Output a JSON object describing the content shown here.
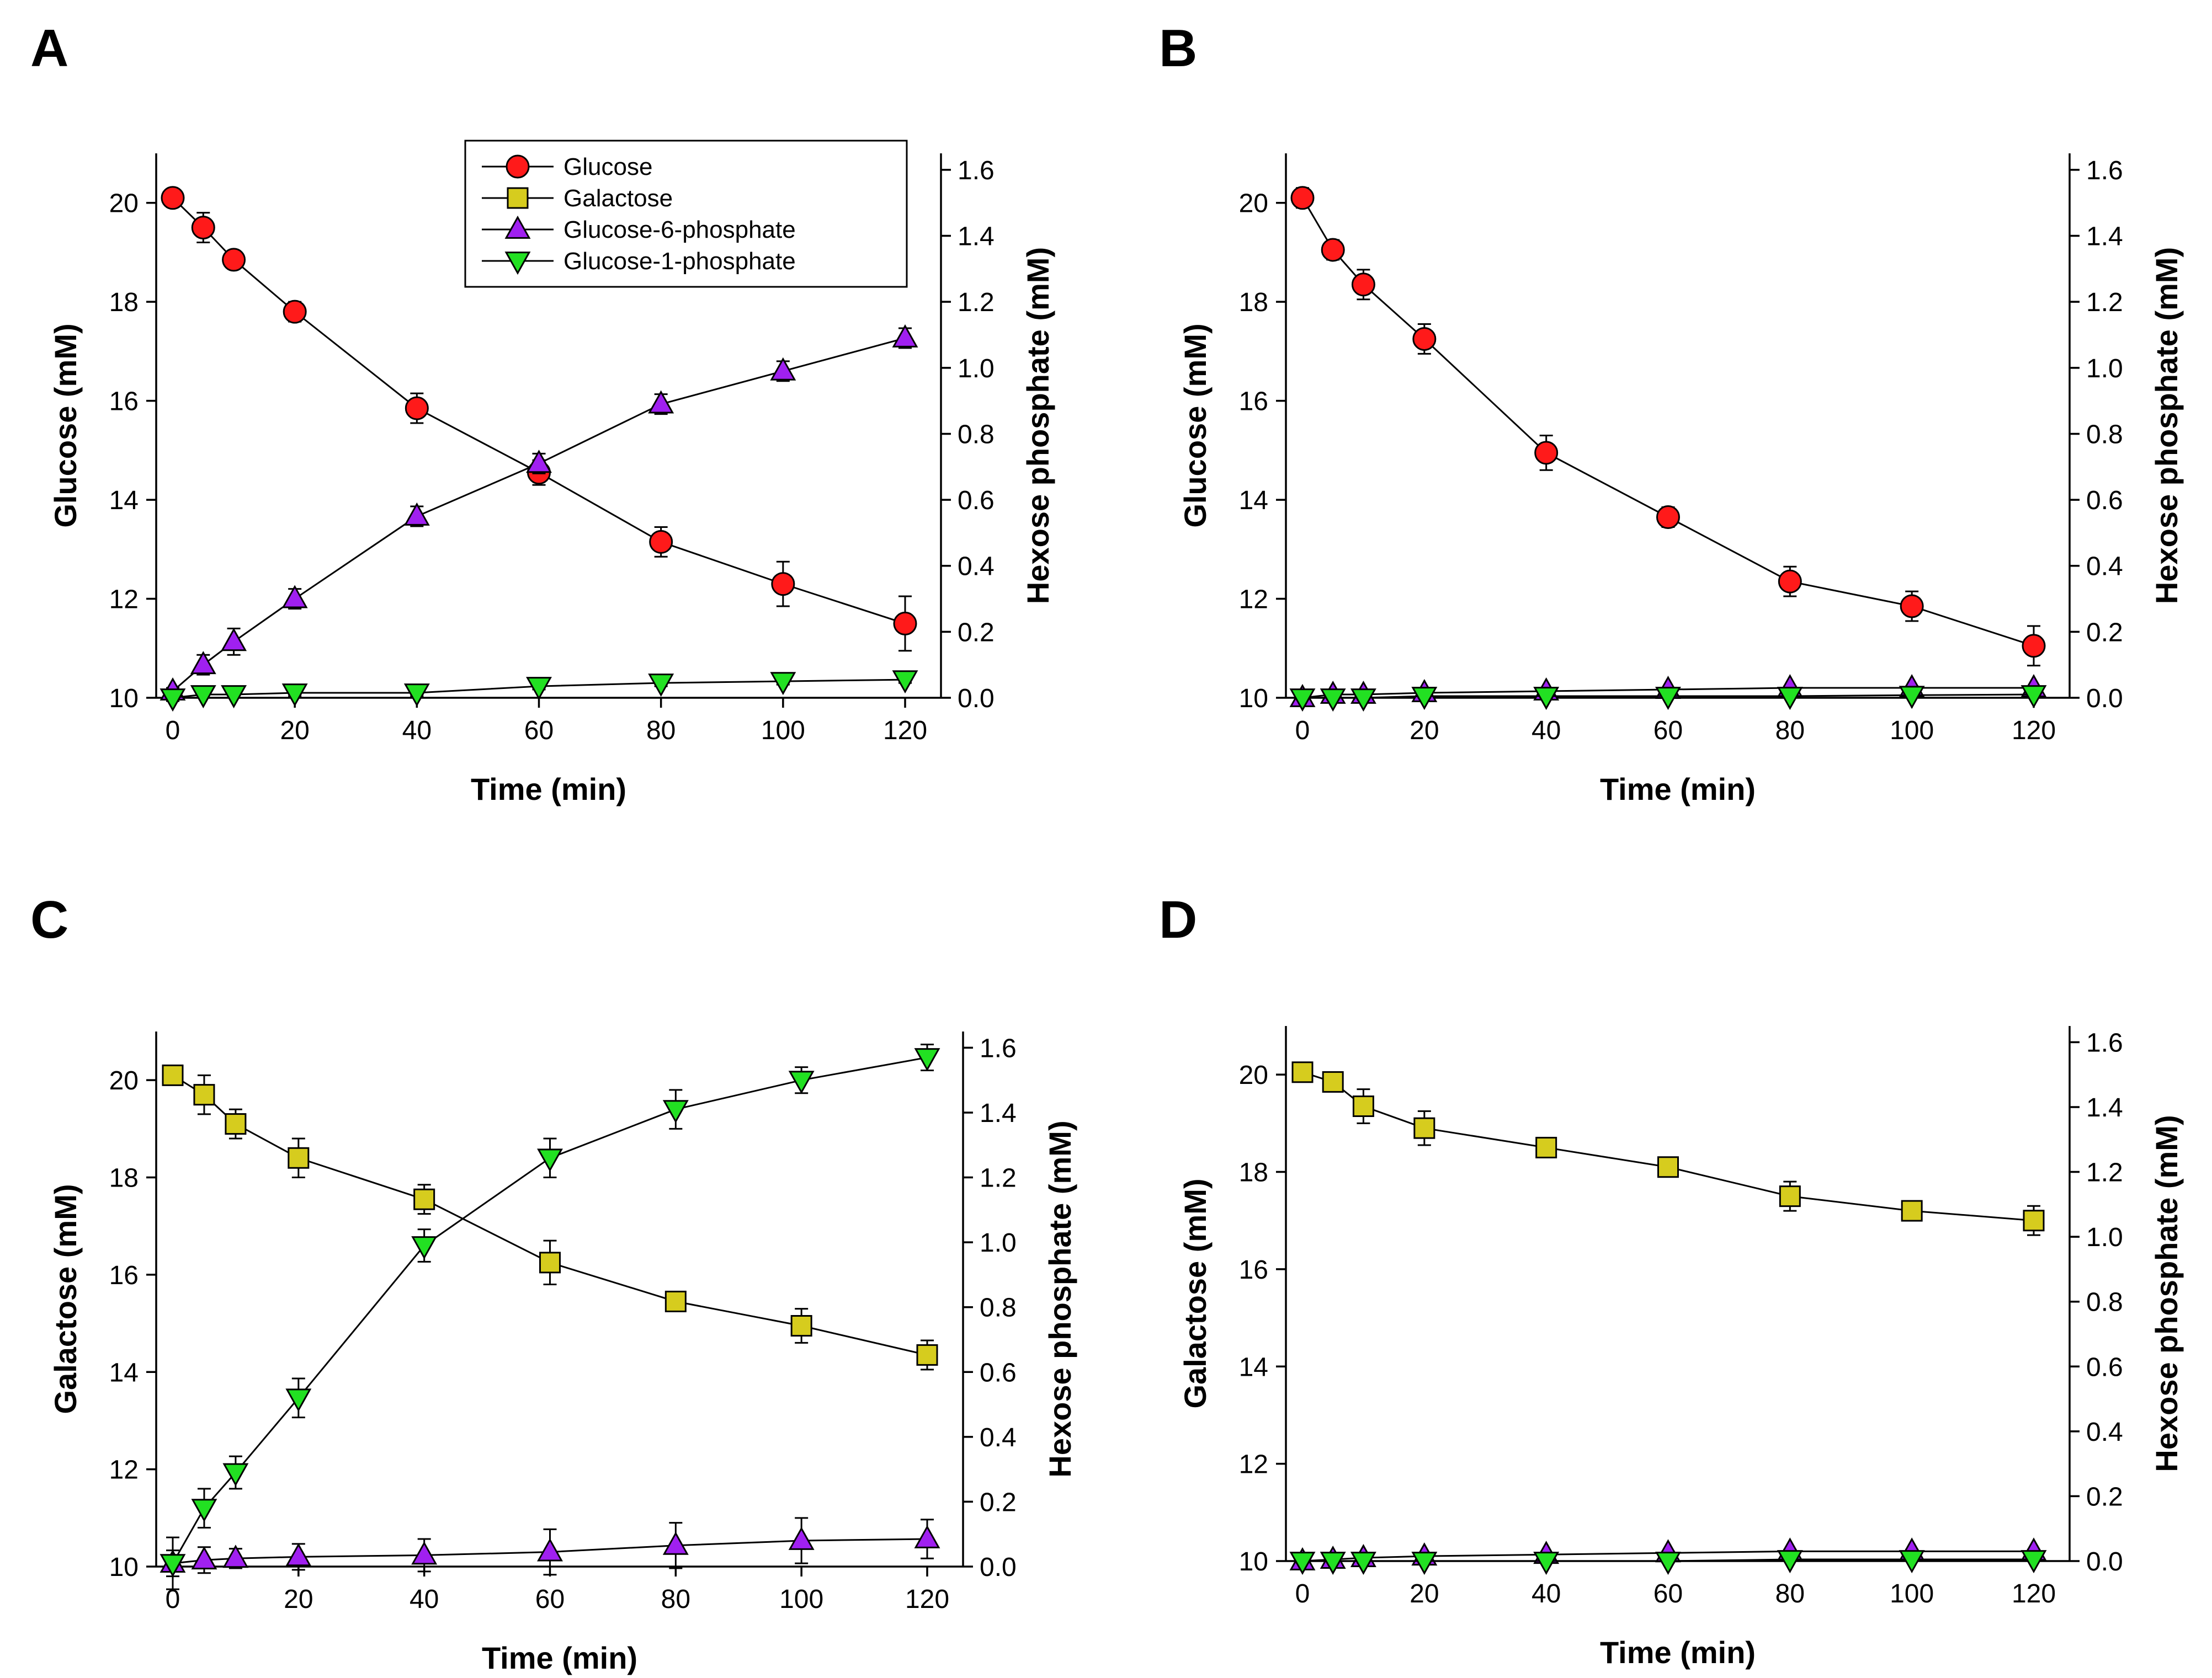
{
  "colors": {
    "glucose": "#ff1a1a",
    "galactose": "#d6cc1e",
    "g6p": "#a020f0",
    "g1p": "#22e022"
  },
  "legend": {
    "items": [
      {
        "label": "Glucose",
        "marker": "circle",
        "color_key": "glucose"
      },
      {
        "label": "Galactose",
        "marker": "square",
        "color_key": "galactose"
      },
      {
        "label": "Glucose-6-phosphate",
        "marker": "triangle-up",
        "color_key": "g6p"
      },
      {
        "label": "Glucose-1-phosphate",
        "marker": "triangle-down",
        "color_key": "g1p"
      }
    ]
  },
  "chart_data": [
    {
      "panel": "A",
      "type": "line",
      "xlabel": "Time (min)",
      "ylabel": "Glucose (mM)",
      "y2label": "Hexose phosphate (mM)",
      "xlim": [
        0,
        120
      ],
      "ylim": [
        10,
        21
      ],
      "y2lim": [
        0,
        1.65
      ],
      "xticks": [
        0,
        20,
        40,
        60,
        80,
        100,
        120
      ],
      "yticks": [
        10,
        12,
        14,
        16,
        18,
        20
      ],
      "y2ticks": [
        0.0,
        0.2,
        0.4,
        0.6,
        0.8,
        1.0,
        1.2,
        1.4,
        1.6
      ],
      "x": [
        0,
        5,
        10,
        20,
        40,
        60,
        80,
        100,
        120
      ],
      "series": [
        {
          "name": "Glucose",
          "axis": "left",
          "marker": "circle",
          "color_key": "glucose",
          "values": [
            20.1,
            19.5,
            18.85,
            17.8,
            15.85,
            14.55,
            13.15,
            12.3,
            11.5
          ],
          "errors": [
            0.1,
            0.3,
            0.15,
            0.2,
            0.3,
            0.25,
            0.3,
            0.45,
            0.55
          ]
        },
        {
          "name": "Glucose-6-phosphate",
          "axis": "right",
          "marker": "triangle-up",
          "color_key": "g6p",
          "values": [
            0.02,
            0.1,
            0.17,
            0.3,
            0.55,
            0.71,
            0.89,
            0.99,
            1.09
          ],
          "errors": [
            0.01,
            0.03,
            0.04,
            0.03,
            0.03,
            0.03,
            0.03,
            0.03,
            0.03
          ]
        },
        {
          "name": "Glucose-1-phosphate",
          "axis": "right",
          "marker": "triangle-down",
          "color_key": "g1p",
          "values": [
            0.0,
            0.01,
            0.01,
            0.015,
            0.015,
            0.035,
            0.045,
            0.05,
            0.055
          ],
          "errors": [
            0.01,
            0.01,
            0.01,
            0.01,
            0.01,
            0.01,
            0.01,
            0.01,
            0.01
          ]
        }
      ]
    },
    {
      "panel": "B",
      "type": "line",
      "xlabel": "Time (min)",
      "ylabel": "Glucose (mM)",
      "y2label": "Hexose phosphate (mM)",
      "xlim": [
        0,
        120
      ],
      "ylim": [
        10,
        21
      ],
      "y2lim": [
        0,
        1.65
      ],
      "xticks": [
        0,
        20,
        40,
        60,
        80,
        100,
        120
      ],
      "yticks": [
        10,
        12,
        14,
        16,
        18,
        20
      ],
      "y2ticks": [
        0.0,
        0.2,
        0.4,
        0.6,
        0.8,
        1.0,
        1.2,
        1.4,
        1.6
      ],
      "x": [
        0,
        5,
        10,
        20,
        40,
        60,
        80,
        100,
        120
      ],
      "series": [
        {
          "name": "Glucose",
          "axis": "left",
          "marker": "circle",
          "color_key": "glucose",
          "values": [
            20.1,
            19.05,
            18.35,
            17.25,
            14.95,
            13.65,
            12.35,
            11.85,
            11.05
          ],
          "errors": [
            0.2,
            0.2,
            0.3,
            0.3,
            0.35,
            0.2,
            0.3,
            0.3,
            0.4
          ]
        },
        {
          "name": "Glucose-6-phosphate",
          "axis": "right",
          "marker": "triangle-up",
          "color_key": "g6p",
          "values": [
            0.0,
            0.01,
            0.01,
            0.015,
            0.02,
            0.025,
            0.03,
            0.03,
            0.03
          ],
          "errors": [
            0.005,
            0.005,
            0.005,
            0.005,
            0.005,
            0.005,
            0.005,
            0.005,
            0.005
          ]
        },
        {
          "name": "Glucose-1-phosphate",
          "axis": "right",
          "marker": "triangle-down",
          "color_key": "g1p",
          "values": [
            0.0,
            0.0,
            0.0,
            0.005,
            0.005,
            0.005,
            0.005,
            0.008,
            0.01
          ],
          "errors": [
            0.005,
            0.005,
            0.005,
            0.005,
            0.005,
            0.005,
            0.005,
            0.005,
            0.005
          ]
        }
      ]
    },
    {
      "panel": "C",
      "type": "line",
      "xlabel": "Time (min)",
      "ylabel": "Galactose (mM)",
      "y2label": "Hexose phosphate (mM)",
      "xlim": [
        0,
        120
      ],
      "ylim": [
        10,
        21
      ],
      "y2lim": [
        0,
        1.65
      ],
      "xticks": [
        0,
        20,
        40,
        60,
        80,
        100,
        120
      ],
      "yticks": [
        10,
        12,
        14,
        16,
        18,
        20
      ],
      "y2ticks": [
        0.0,
        0.2,
        0.4,
        0.6,
        0.8,
        1.0,
        1.2,
        1.4,
        1.6
      ],
      "x": [
        0,
        5,
        10,
        20,
        40,
        60,
        80,
        100,
        120
      ],
      "series": [
        {
          "name": "Galactose",
          "axis": "left",
          "marker": "square",
          "color_key": "galactose",
          "values": [
            20.1,
            19.7,
            19.1,
            18.4,
            17.55,
            16.25,
            15.45,
            14.95,
            14.35
          ],
          "errors": [
            0.1,
            0.4,
            0.3,
            0.4,
            0.3,
            0.45,
            0.2,
            0.35,
            0.3
          ]
        },
        {
          "name": "Glucose-6-phosphate",
          "axis": "right",
          "marker": "triangle-up",
          "color_key": "g6p",
          "values": [
            0.01,
            0.02,
            0.025,
            0.03,
            0.035,
            0.045,
            0.065,
            0.08,
            0.085
          ],
          "errors": [
            0.04,
            0.04,
            0.03,
            0.04,
            0.05,
            0.07,
            0.07,
            0.07,
            0.06
          ]
        },
        {
          "name": "Glucose-1-phosphate",
          "axis": "right",
          "marker": "triangle-down",
          "color_key": "g1p",
          "values": [
            0.01,
            0.18,
            0.29,
            0.52,
            0.99,
            1.26,
            1.41,
            1.5,
            1.57
          ],
          "errors": [
            0.08,
            0.06,
            0.05,
            0.06,
            0.05,
            0.06,
            0.06,
            0.04,
            0.04
          ]
        }
      ]
    },
    {
      "panel": "D",
      "type": "line",
      "xlabel": "Time (min)",
      "ylabel": "Galactose (mM)",
      "y2label": "Hexose phosphate (mM)",
      "xlim": [
        0,
        120
      ],
      "ylim": [
        10,
        21
      ],
      "y2lim": [
        0,
        1.65
      ],
      "xticks": [
        0,
        20,
        40,
        60,
        80,
        100,
        120
      ],
      "yticks": [
        10,
        12,
        14,
        16,
        18,
        20
      ],
      "y2ticks": [
        0.0,
        0.2,
        0.4,
        0.6,
        0.8,
        1.0,
        1.2,
        1.4,
        1.6
      ],
      "x": [
        0,
        5,
        10,
        20,
        40,
        60,
        80,
        100,
        120
      ],
      "series": [
        {
          "name": "Galactose",
          "axis": "left",
          "marker": "square",
          "color_key": "galactose",
          "values": [
            20.05,
            19.85,
            19.35,
            18.9,
            18.5,
            18.1,
            17.5,
            17.2,
            17.0
          ],
          "errors": [
            0.15,
            0.1,
            0.35,
            0.35,
            0.2,
            0.15,
            0.3,
            0.2,
            0.3
          ]
        },
        {
          "name": "Glucose-6-phosphate",
          "axis": "right",
          "marker": "triangle-up",
          "color_key": "g6p",
          "values": [
            0.0,
            0.005,
            0.01,
            0.015,
            0.02,
            0.025,
            0.03,
            0.03,
            0.03
          ],
          "errors": [
            0.005,
            0.005,
            0.005,
            0.005,
            0.005,
            0.005,
            0.005,
            0.005,
            0.005
          ]
        },
        {
          "name": "Glucose-1-phosphate",
          "axis": "right",
          "marker": "triangle-down",
          "color_key": "g1p",
          "values": [
            0.0,
            0.0,
            0.0,
            0.0,
            0.0,
            0.0,
            0.005,
            0.005,
            0.005
          ],
          "errors": [
            0.005,
            0.005,
            0.005,
            0.005,
            0.005,
            0.005,
            0.005,
            0.005,
            0.005
          ]
        }
      ]
    }
  ]
}
